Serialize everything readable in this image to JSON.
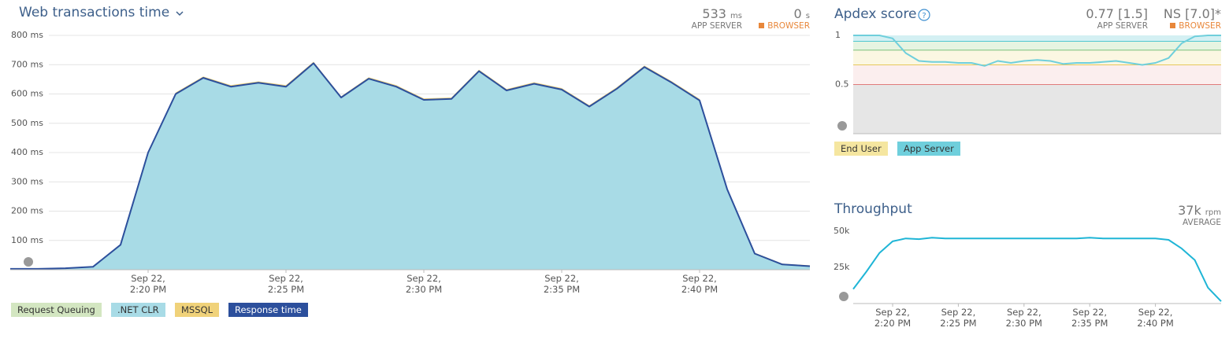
{
  "chart_data": [
    {
      "type": "area",
      "title": "Web transactions time",
      "summary": [
        {
          "value": "533",
          "unit": "ms",
          "label": "APP SERVER"
        },
        {
          "value": "0",
          "unit": "s",
          "label": "BROWSER",
          "color": "#e8873a"
        }
      ],
      "x": [
        "2:15 PM",
        "2:16 PM",
        "2:17 PM",
        "2:18 PM",
        "2:19 PM",
        "2:20 PM",
        "2:21 PM",
        "2:22 PM",
        "2:23 PM",
        "2:24 PM",
        "2:25 PM",
        "2:26 PM",
        "2:27 PM",
        "2:28 PM",
        "2:29 PM",
        "2:30 PM",
        "2:31 PM",
        "2:32 PM",
        "2:33 PM",
        "2:34 PM",
        "2:35 PM",
        "2:36 PM",
        "2:37 PM",
        "2:38 PM",
        "2:39 PM",
        "2:40 PM",
        "2:41 PM",
        "2:42 PM",
        "2:43 PM",
        "2:44 PM"
      ],
      "xlim": [
        "2:15 PM",
        "2:44 PM"
      ],
      "xticks": [
        {
          "value": "2:20 PM",
          "label": "Sep 22, 2:20 PM"
        },
        {
          "value": "2:25 PM",
          "label": "Sep 22, 2:25 PM"
        },
        {
          "value": "2:30 PM",
          "label": "Sep 22, 2:30 PM"
        },
        {
          "value": "2:35 PM",
          "label": "Sep 22, 2:35 PM"
        },
        {
          "value": "2:40 PM",
          "label": "Sep 22, 2:40 PM"
        }
      ],
      "ylim": [
        0,
        800
      ],
      "yticks": [
        {
          "value": 100,
          "label": "100 ms"
        },
        {
          "value": 200,
          "label": "200 ms"
        },
        {
          "value": 300,
          "label": "300 ms"
        },
        {
          "value": 400,
          "label": "400 ms"
        },
        {
          "value": 500,
          "label": "500 ms"
        },
        {
          "value": 600,
          "label": "600 ms"
        },
        {
          "value": 700,
          "label": "700 ms"
        },
        {
          "value": 800,
          "label": "800 ms"
        }
      ],
      "grid": true,
      "series": [
        {
          "name": "Request Queuing",
          "color": "#d3e6c1",
          "style": "area",
          "values": [
            0,
            0,
            0,
            0,
            0,
            0,
            0,
            0,
            0,
            0,
            0,
            0,
            0,
            0,
            0,
            0,
            0,
            0,
            0,
            0,
            0,
            0,
            0,
            0,
            0,
            0,
            0,
            0,
            0,
            0
          ]
        },
        {
          "name": ".NET CLR",
          "color": "#a8dbe6",
          "style": "area",
          "values": [
            3,
            3,
            5,
            10,
            85,
            400,
            600,
            655,
            625,
            638,
            625,
            705,
            588,
            652,
            625,
            580,
            583,
            678,
            612,
            635,
            615,
            557,
            618,
            692,
            638,
            578,
            275,
            55,
            18,
            12
          ]
        },
        {
          "name": "MSSQL",
          "color": "#f0d27a",
          "style": "area",
          "values": [
            1,
            1,
            1,
            1,
            3,
            4,
            5,
            5,
            5,
            5,
            5,
            5,
            4,
            5,
            5,
            5,
            5,
            5,
            5,
            5,
            5,
            5,
            5,
            5,
            5,
            5,
            4,
            3,
            3,
            3
          ]
        },
        {
          "name": "Response time",
          "color": "#2c4f9c",
          "style": "line",
          "values": [
            3,
            3,
            5,
            10,
            85,
            400,
            600,
            655,
            625,
            638,
            625,
            705,
            588,
            652,
            625,
            580,
            583,
            678,
            612,
            635,
            615,
            557,
            618,
            692,
            638,
            578,
            275,
            55,
            18,
            12
          ]
        }
      ]
    },
    {
      "type": "line",
      "title": "Apdex score",
      "summary": [
        {
          "value": "0.77 [1.5]",
          "label": "APP SERVER"
        },
        {
          "value": "NS [7.0]*",
          "label": "BROWSER",
          "color": "#e8873a"
        }
      ],
      "x": [
        "2:17 PM",
        "2:18 PM",
        "2:19 PM",
        "2:20 PM",
        "2:21 PM",
        "2:22 PM",
        "2:23 PM",
        "2:24 PM",
        "2:25 PM",
        "2:26 PM",
        "2:27 PM",
        "2:28 PM",
        "2:29 PM",
        "2:30 PM",
        "2:31 PM",
        "2:32 PM",
        "2:33 PM",
        "2:34 PM",
        "2:35 PM",
        "2:36 PM",
        "2:37 PM",
        "2:38 PM",
        "2:39 PM",
        "2:40 PM",
        "2:41 PM",
        "2:42 PM",
        "2:43 PM",
        "2:44 PM",
        "2:45 PM"
      ],
      "xlim": [
        "2:17 PM",
        "2:45 PM"
      ],
      "xticks": [],
      "ylim": [
        0,
        1
      ],
      "yticks": [
        0.5,
        1
      ],
      "bands": [
        {
          "from": 0,
          "to": 0.5,
          "color": "#e6e6e6",
          "line": "#e07a7a"
        },
        {
          "from": 0.5,
          "to": 0.7,
          "color": "#fbeeee",
          "line": "#e6c85a"
        },
        {
          "from": 0.7,
          "to": 0.85,
          "color": "#fbf7e2",
          "line": "#7cc07c"
        },
        {
          "from": 0.85,
          "to": 0.94,
          "color": "#e6f4e1",
          "line": "#4fc6d0"
        },
        {
          "from": 0.94,
          "to": 1,
          "color": "#d4f0f3",
          "line": "#4fc6d0"
        }
      ],
      "series": [
        {
          "name": "End User",
          "color": "#f5e6a0",
          "style": "line",
          "values": [
            null,
            null,
            null,
            null,
            null,
            null,
            null,
            null,
            null,
            null,
            null,
            null,
            null,
            null,
            null,
            null,
            null,
            null,
            null,
            null,
            null,
            null,
            null,
            null,
            null,
            null,
            null,
            null,
            null
          ]
        },
        {
          "name": "App Server",
          "color": "#6fcfdc",
          "style": "line",
          "values": [
            1,
            1,
            1,
            0.97,
            0.82,
            0.74,
            0.73,
            0.73,
            0.72,
            0.72,
            0.69,
            0.74,
            0.72,
            0.74,
            0.75,
            0.74,
            0.71,
            0.72,
            0.72,
            0.73,
            0.74,
            0.72,
            0.7,
            0.72,
            0.77,
            0.92,
            0.99,
            1,
            1
          ]
        }
      ]
    },
    {
      "type": "line",
      "title": "Throughput",
      "summary": [
        {
          "value": "37k",
          "unit": "rpm",
          "label": "AVERAGE"
        }
      ],
      "x": [
        "2:17 PM",
        "2:18 PM",
        "2:19 PM",
        "2:20 PM",
        "2:21 PM",
        "2:22 PM",
        "2:23 PM",
        "2:24 PM",
        "2:25 PM",
        "2:26 PM",
        "2:27 PM",
        "2:28 PM",
        "2:29 PM",
        "2:30 PM",
        "2:31 PM",
        "2:32 PM",
        "2:33 PM",
        "2:34 PM",
        "2:35 PM",
        "2:36 PM",
        "2:37 PM",
        "2:38 PM",
        "2:39 PM",
        "2:40 PM",
        "2:41 PM",
        "2:42 PM",
        "2:43 PM",
        "2:44 PM",
        "2:45 PM"
      ],
      "xlim": [
        "2:17 PM",
        "2:45 PM"
      ],
      "xticks": [
        {
          "value": "2:20 PM",
          "label": "Sep 22, 2:20 PM"
        },
        {
          "value": "2:25 PM",
          "label": "Sep 22, 2:25 PM"
        },
        {
          "value": "2:30 PM",
          "label": "Sep 22, 2:30 PM"
        },
        {
          "value": "2:35 PM",
          "label": "Sep 22, 2:35 PM"
        },
        {
          "value": "2:40 PM",
          "label": "Sep 22, 2:40 PM"
        }
      ],
      "ylim": [
        0,
        50000
      ],
      "yticks": [
        {
          "value": 25000,
          "label": "25k"
        },
        {
          "value": 50000,
          "label": "50k"
        }
      ],
      "series": [
        {
          "name": "Throughput",
          "color": "#1fb5d6",
          "style": "line",
          "values": [
            10000,
            22000,
            35000,
            43000,
            45000,
            44500,
            45500,
            45000,
            45000,
            45000,
            45000,
            45000,
            45000,
            45000,
            45000,
            45000,
            45000,
            45000,
            45500,
            45000,
            45000,
            45000,
            45000,
            45000,
            44000,
            38000,
            30000,
            11000,
            1500
          ]
        }
      ]
    }
  ]
}
